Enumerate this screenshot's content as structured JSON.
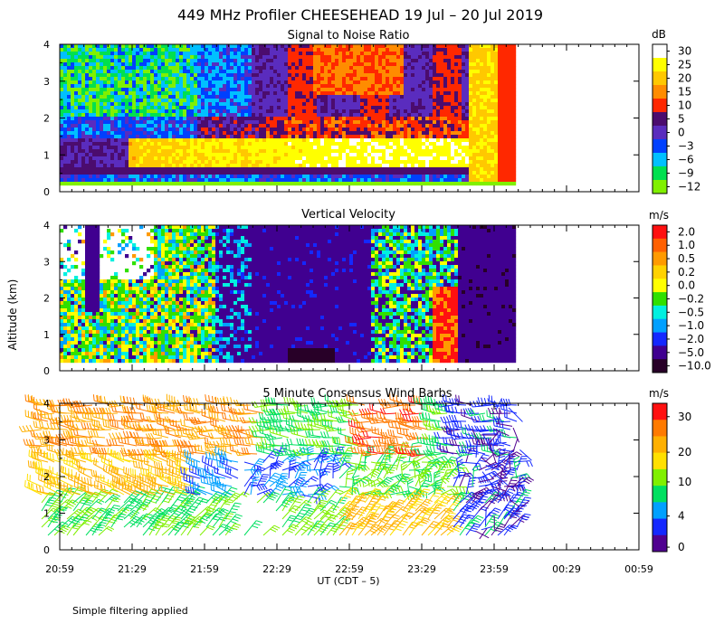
{
  "title": "449 MHz Profiler CHEESEHEAD 19 Jul – 20 Jul 2019",
  "ylabel": "Altitude (km)",
  "xlabel": "UT  (CDT – 5)",
  "footnote": "Simple filtering applied",
  "chart_data": [
    {
      "type": "heatmap",
      "title": "Signal to Noise Ratio",
      "colorbar_unit": "dB",
      "colorbar_labels": [
        "30",
        "25",
        "20",
        "15",
        "10",
        "5",
        "0",
        "−3",
        "−6",
        "−9",
        "−12"
      ],
      "colorbar_colors": [
        "#ffffff",
        "#ffff00",
        "#ffc800",
        "#ff8c00",
        "#ff2800",
        "#4b0c6e",
        "#5a2cbe",
        "#0040ff",
        "#00c0ff",
        "#00e050",
        "#80f000"
      ],
      "ylim": [
        0,
        4
      ],
      "y_ticks": [
        "0",
        "1",
        "2",
        "3",
        "4"
      ],
      "x_ticks": [
        "20:59",
        "21:29",
        "21:59",
        "22:29",
        "22:59",
        "23:29",
        "23:59",
        "00:29",
        "00:59"
      ]
    },
    {
      "type": "heatmap",
      "title": "Vertical Velocity",
      "colorbar_unit": "m/s",
      "colorbar_labels": [
        "2.0",
        "1.0",
        "0.5",
        "0.2",
        "0.0",
        "−0.2",
        "−0.5",
        "−1.0",
        "−2.0",
        "−5.0",
        "−10.0"
      ],
      "colorbar_colors": [
        "#ff1010",
        "#ff6000",
        "#ff9a00",
        "#ffd200",
        "#ffff00",
        "#30e000",
        "#00f0e0",
        "#00a0ff",
        "#1428ff",
        "#400090",
        "#280028"
      ],
      "ylim": [
        0,
        4
      ],
      "y_ticks": [
        "0",
        "1",
        "2",
        "3",
        "4"
      ],
      "x_ticks": [
        "20:59",
        "21:29",
        "21:59",
        "22:29",
        "22:59",
        "23:29",
        "23:59",
        "00:29",
        "00:59"
      ]
    },
    {
      "type": "scatter",
      "title": "5 Minute Consensus Wind Barbs",
      "colorbar_unit": "m/s",
      "colorbar_labels": [
        "30",
        "20",
        "10",
        "4",
        "0"
      ],
      "colorbar_colors": [
        "#ff1010",
        "#ff7a00",
        "#ffb000",
        "#ffe000",
        "#80f000",
        "#00e060",
        "#00a0ff",
        "#1428ff",
        "#500090"
      ],
      "ylim": [
        0,
        4
      ],
      "y_ticks": [
        "0",
        "1",
        "2",
        "3",
        "4"
      ],
      "x_ticks": [
        "20:59",
        "21:29",
        "21:59",
        "22:29",
        "22:59",
        "23:29",
        "23:59",
        "00:29",
        "00:59"
      ]
    }
  ]
}
